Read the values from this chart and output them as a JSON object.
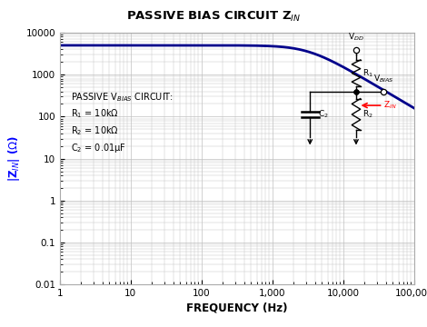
{
  "title": "PASSIVE BIAS CIRCUIT Z",
  "xlabel": "FREQUENCY (Hz)",
  "ylabel_label": "|Z$_{IN}$| (Ω)",
  "xlim_log": [
    1,
    100000
  ],
  "ylim_log": [
    0.01,
    10000
  ],
  "line_color": "#00008B",
  "line_width": 2.0,
  "background_color": "#ffffff",
  "grid_color": "#c0c0c0",
  "R1": 10000,
  "R2": 10000,
  "C2": 1e-08,
  "fig_width": 4.7,
  "fig_height": 3.6,
  "dpi": 100,
  "ann_text_line1": "PASSIVE V$_{BIAS}$ CIRCUIT:",
  "ann_text_line2": "R$_1$ = 10kΩ",
  "ann_text_line3": "R$_2$ = 10kΩ",
  "ann_text_line4": "C$_2$ = 0.01µF"
}
